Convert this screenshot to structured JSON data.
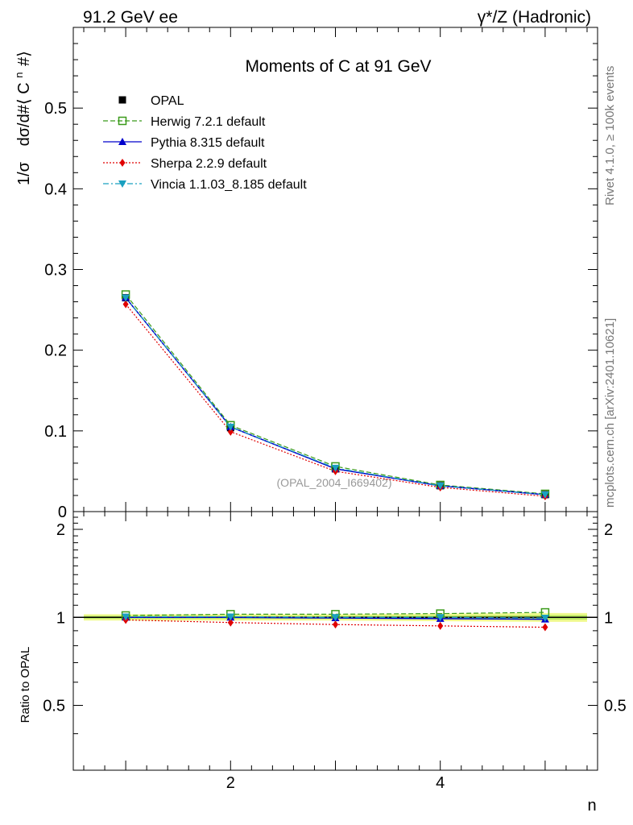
{
  "header": {
    "left": "91.2 GeV ee",
    "right": "γ*/Z (Hadronic)"
  },
  "side_labels": {
    "rivet": "Rivet 4.1.0, ≥ 100k events",
    "mcplots": "mcplots.cern.ch [arXiv:2401.10621]"
  },
  "watermark": "(OPAL_2004_I669402)",
  "colors": {
    "data": "#000000",
    "herwig": "#3a9a1a",
    "pythia": "#0000cc",
    "sherpa": "#e00000",
    "vincia": "#1aa0c0",
    "band_outer": "#f0fa90",
    "band_inner": "#b8e860"
  },
  "chart_data": [
    {
      "type": "line",
      "title": "Moments of C at 91 GeV",
      "ylabel_prefix": "1/σ",
      "ylabel_main": "dσ/d#⟨ C",
      "ylabel_sup": "n",
      "ylabel_suffix": "#⟩",
      "xlabel": "",
      "xlim": [
        0.5,
        5.5
      ],
      "ylim": [
        0,
        0.6
      ],
      "yticks": [
        0,
        0.1,
        0.2,
        0.3,
        0.4,
        0.5
      ],
      "ytick_labels": [
        "0",
        "0.1",
        "0.2",
        "0.3",
        "0.4",
        "0.5"
      ],
      "x": [
        1,
        2,
        3,
        4,
        5
      ],
      "series": [
        {
          "key": "opal",
          "name": "OPAL",
          "values": [
            0.265,
            0.104,
            0.053,
            0.032,
            0.021
          ],
          "marker": "square-filled",
          "style": "none"
        },
        {
          "key": "herwig",
          "name": "Herwig 7.2.1 default",
          "values": [
            0.269,
            0.107,
            0.056,
            0.033,
            0.022
          ],
          "marker": "square-open",
          "style": "dashed"
        },
        {
          "key": "pythia",
          "name": "Pythia 8.315 default",
          "values": [
            0.265,
            0.105,
            0.053,
            0.032,
            0.021
          ],
          "marker": "triangle-up",
          "style": "solid"
        },
        {
          "key": "sherpa",
          "name": "Sherpa 2.2.9 default",
          "values": [
            0.257,
            0.099,
            0.05,
            0.03,
            0.019
          ],
          "marker": "diamond",
          "style": "dotted"
        },
        {
          "key": "vincia",
          "name": "Vincia 1.1.03_8.185 default",
          "values": [
            0.265,
            0.105,
            0.054,
            0.032,
            0.021
          ],
          "marker": "triangle-down",
          "style": "dashdot"
        }
      ]
    },
    {
      "type": "line",
      "title": "",
      "ylabel": "Ratio to OPAL",
      "xlabel": "n",
      "xlim": [
        0.5,
        5.5
      ],
      "ylim": [
        0.3,
        2.3
      ],
      "xticks": [
        2,
        4
      ],
      "xtick_labels": [
        "2",
        "4"
      ],
      "yticks": [
        0.5,
        1,
        2
      ],
      "ytick_labels": [
        "0.5",
        "1",
        "2"
      ],
      "x": [
        1,
        2,
        3,
        4,
        5
      ],
      "band_outer": [
        0.025,
        0.025,
        0.025,
        0.03,
        0.035
      ],
      "band_inner": [
        0.012,
        0.012,
        0.012,
        0.015,
        0.018
      ],
      "series": [
        {
          "key": "opal",
          "name": "OPAL",
          "values": [
            1.0,
            1.0,
            1.0,
            1.0,
            1.0
          ],
          "style": "solid"
        },
        {
          "key": "herwig",
          "name": "Herwig 7.2.1 default",
          "values": [
            1.015,
            1.025,
            1.025,
            1.03,
            1.04
          ],
          "marker": "square-open",
          "style": "dashed"
        },
        {
          "key": "pythia",
          "name": "Pythia 8.315 default",
          "values": [
            1.0,
            1.0,
            0.995,
            0.99,
            0.985
          ],
          "marker": "triangle-up",
          "style": "solid"
        },
        {
          "key": "sherpa",
          "name": "Sherpa 2.2.9 default",
          "values": [
            0.98,
            0.96,
            0.945,
            0.935,
            0.925
          ],
          "marker": "diamond",
          "style": "dotted"
        },
        {
          "key": "vincia",
          "name": "Vincia 1.1.03_8.185 default",
          "values": [
            1.005,
            1.005,
            1.0,
            1.0,
            0.995
          ],
          "marker": "triangle-down",
          "style": "dashdot"
        }
      ]
    }
  ]
}
